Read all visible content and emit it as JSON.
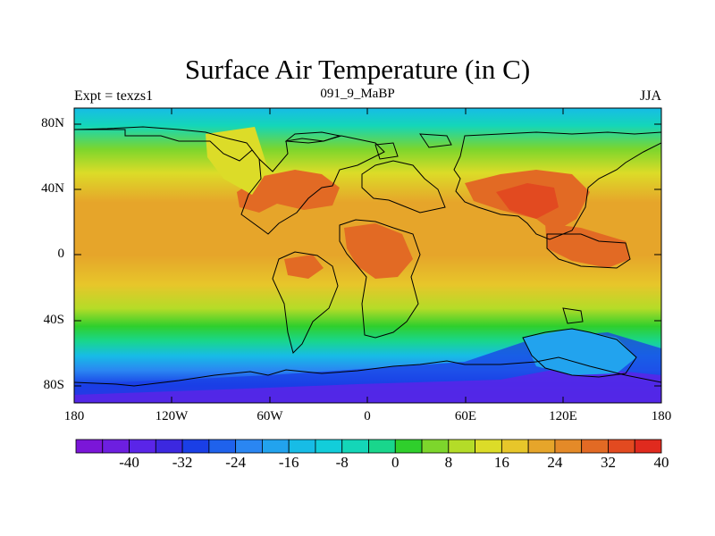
{
  "map": {
    "title": "Surface Air Temperature (in C)",
    "subtitle": "091_9_MaBP",
    "left_label": "Expt = texzs1",
    "right_label": "JJA",
    "lat_ticks": [
      "80N",
      "40N",
      "0",
      "40S",
      "80S"
    ],
    "lon_ticks": [
      "180",
      "120W",
      "60W",
      "0",
      "60E",
      "120E",
      "180"
    ],
    "colorbar": {
      "labels": [
        "-40",
        "-32",
        "-24",
        "-16",
        "-8",
        "0",
        "8",
        "16",
        "24",
        "32",
        "40"
      ],
      "colors": [
        "#7b16d8",
        "#6d1fe0",
        "#5a25e8",
        "#3c28e0",
        "#1a3fe6",
        "#1f62ec",
        "#2a86f2",
        "#22a3ee",
        "#17bce6",
        "#12cdda",
        "#14d6b8",
        "#19d68c",
        "#2fcf2c",
        "#7dd62c",
        "#b4dc28",
        "#dcdc28",
        "#e7c62a",
        "#e6a52a",
        "#e48a28",
        "#e26a24",
        "#e24a20",
        "#e02a1e"
      ]
    }
  }
}
